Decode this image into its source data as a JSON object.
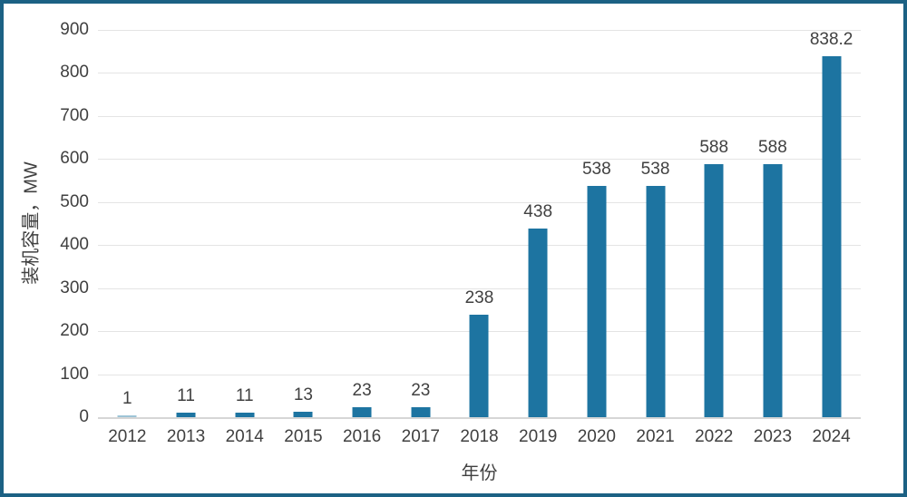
{
  "chart_data": {
    "type": "bar",
    "title": "",
    "categories": [
      "2012",
      "2013",
      "2014",
      "2015",
      "2016",
      "2017",
      "2018",
      "2019",
      "2020",
      "2021",
      "2022",
      "2023",
      "2024"
    ],
    "values": [
      1,
      11,
      11,
      13,
      23,
      23,
      238,
      438,
      538,
      538,
      588,
      588,
      838.2
    ],
    "data_labels": [
      "1",
      "11",
      "11",
      "13",
      "23",
      "23",
      "238",
      "438",
      "538",
      "538",
      "588",
      "588",
      "838.2"
    ],
    "xlabel": "年份",
    "ylabel": "装机容量，MW",
    "ylim": [
      0,
      900
    ],
    "y_ticks": [
      0,
      100,
      200,
      300,
      400,
      500,
      600,
      700,
      800,
      900
    ],
    "grid": "horizontal",
    "legend": "none",
    "bar_colors": [
      "#9DC4D6",
      "#1D74A1",
      "#1D74A1",
      "#1D74A1",
      "#1D74A1",
      "#1D74A1",
      "#1D74A1",
      "#1D74A1",
      "#1D74A1",
      "#1D74A1",
      "#1D74A1",
      "#1D74A1",
      "#1D74A1"
    ]
  },
  "colors": {
    "bar_default": "#1D74A1",
    "grid": "#E4E4E4",
    "zero_line": "#D6D6D6",
    "frame_border": "#1C6184",
    "text": "#404040",
    "background": "#FFFFFF"
  }
}
